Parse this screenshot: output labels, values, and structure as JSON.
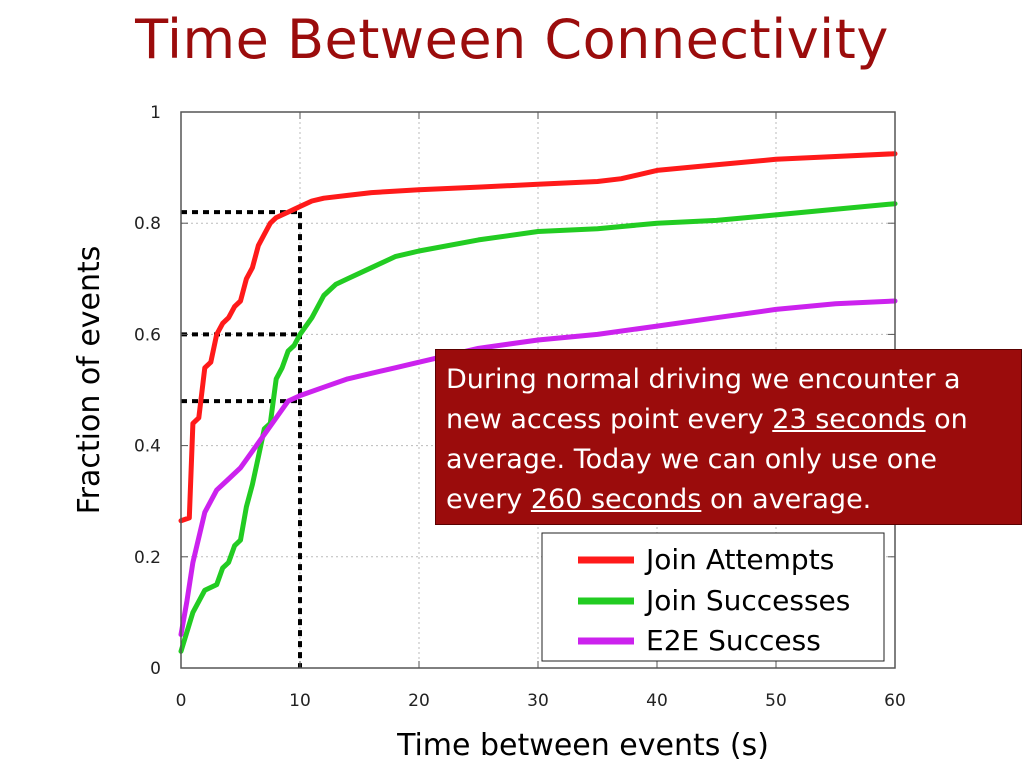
{
  "slide": {
    "title": "Time Between Connectivity"
  },
  "callout": {
    "text_1": "During normal driving we encounter a new access point every ",
    "highlight_1": "23 seconds",
    "text_2": " on average. Today we can only  use one every ",
    "highlight_2": "260 seconds",
    "text_3": " on average."
  },
  "colors": {
    "title": "#9b0c0c",
    "callout_bg": "#9b0c0c",
    "join_attempts": "#ff1a1a",
    "join_successes": "#22cc22",
    "e2e_success": "#cc22ee"
  },
  "chart_data": {
    "type": "line",
    "xlabel": "Time between events (s)",
    "ylabel": "Fraction of events",
    "xlim": [
      0,
      60
    ],
    "ylim": [
      0,
      1
    ],
    "xticks": [
      0,
      10,
      20,
      30,
      40,
      50,
      60
    ],
    "yticks": [
      0,
      0.2,
      0.4,
      0.6,
      0.8,
      1
    ],
    "ytick_labels": [
      "0",
      "0.2",
      "0.4",
      "0.6",
      "0.8",
      "1"
    ],
    "grid": true,
    "legend_position": "bottom-right",
    "series": [
      {
        "name": "Join Attempts",
        "color_key": "join_attempts",
        "x": [
          0,
          0.7,
          1.0,
          1.5,
          2.0,
          2.5,
          3.0,
          3.5,
          4.0,
          4.5,
          5.0,
          5.5,
          6.0,
          6.5,
          7.0,
          7.5,
          8.0,
          8.5,
          9.0,
          9.5,
          10,
          11,
          12,
          14,
          16,
          20,
          25,
          30,
          35,
          37,
          40,
          45,
          50,
          55,
          60
        ],
        "y": [
          0.265,
          0.27,
          0.44,
          0.45,
          0.54,
          0.55,
          0.6,
          0.62,
          0.63,
          0.65,
          0.66,
          0.7,
          0.72,
          0.76,
          0.78,
          0.8,
          0.81,
          0.815,
          0.82,
          0.825,
          0.83,
          0.84,
          0.845,
          0.85,
          0.855,
          0.86,
          0.865,
          0.87,
          0.875,
          0.88,
          0.895,
          0.905,
          0.915,
          0.92,
          0.925
        ]
      },
      {
        "name": "Join Successes",
        "color_key": "join_successes",
        "x": [
          0,
          1.0,
          2.0,
          3.0,
          3.5,
          4.0,
          4.5,
          5.0,
          5.5,
          6.0,
          6.5,
          7.0,
          7.5,
          8.0,
          8.5,
          9.0,
          9.5,
          10,
          11,
          12,
          13,
          14,
          16,
          18,
          20,
          25,
          30,
          35,
          40,
          45,
          50,
          55,
          60
        ],
        "y": [
          0.03,
          0.1,
          0.14,
          0.15,
          0.18,
          0.19,
          0.22,
          0.23,
          0.29,
          0.33,
          0.38,
          0.43,
          0.44,
          0.52,
          0.54,
          0.57,
          0.58,
          0.6,
          0.63,
          0.67,
          0.69,
          0.7,
          0.72,
          0.74,
          0.75,
          0.77,
          0.785,
          0.79,
          0.8,
          0.805,
          0.815,
          0.825,
          0.835
        ]
      },
      {
        "name": "E2E Success",
        "color_key": "e2e_success",
        "x": [
          0,
          0.5,
          1.0,
          2.0,
          3.0,
          4.0,
          5.0,
          6.0,
          7.0,
          8.0,
          9.0,
          10,
          12,
          14,
          16,
          18,
          20,
          25,
          30,
          35,
          40,
          45,
          50,
          55,
          60
        ],
        "y": [
          0.06,
          0.12,
          0.19,
          0.28,
          0.32,
          0.34,
          0.36,
          0.39,
          0.42,
          0.45,
          0.48,
          0.49,
          0.505,
          0.52,
          0.53,
          0.54,
          0.55,
          0.575,
          0.59,
          0.6,
          0.615,
          0.63,
          0.645,
          0.655,
          0.66
        ]
      }
    ],
    "reference_lines": [
      {
        "y": 0.82,
        "x_end": 10,
        "vertical": true
      },
      {
        "y": 0.6,
        "x_end": 10,
        "vertical": false
      },
      {
        "y": 0.48,
        "x_end": 10,
        "vertical": false
      }
    ]
  }
}
